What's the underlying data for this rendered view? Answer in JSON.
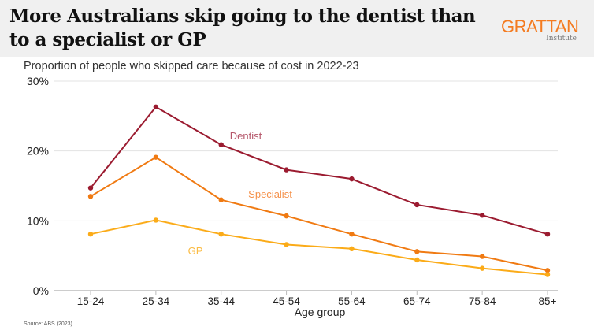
{
  "header": {
    "title": "More Australians skip going to the dentist than to a specialist or GP",
    "logo_main": "GRATTAN",
    "logo_sub": "Institute"
  },
  "subtitle": "Proportion of people who skipped care because of cost in 2022-23",
  "source": "Source: ABS (2023).",
  "chart_data": {
    "type": "line",
    "title": "Proportion of people who skipped care because of cost in 2022-23",
    "xlabel": "Age group",
    "ylabel": "",
    "categories": [
      "15-24",
      "25-34",
      "35-44",
      "45-54",
      "55-64",
      "65-74",
      "75-84",
      "85+"
    ],
    "ylim": [
      0,
      30
    ],
    "yticks": [
      0,
      10,
      20,
      30
    ],
    "ytick_labels": [
      "0%",
      "10%",
      "20%",
      "30%"
    ],
    "grid": true,
    "series": [
      {
        "name": "Dentist",
        "color": "#9b1b30",
        "label_color": "#b5566a",
        "values": [
          14.7,
          26.3,
          20.9,
          17.3,
          16.0,
          12.3,
          10.8,
          8.1
        ]
      },
      {
        "name": "Specialist",
        "color": "#f07a12",
        "label_color": "#f5914a",
        "values": [
          13.5,
          19.1,
          13.0,
          10.7,
          8.1,
          5.6,
          4.9,
          2.9
        ]
      },
      {
        "name": "GP",
        "color": "#fbab18",
        "label_color": "#fbbc45",
        "values": [
          8.1,
          10.1,
          8.1,
          6.6,
          6.0,
          4.4,
          3.2,
          2.3
        ]
      }
    ]
  }
}
